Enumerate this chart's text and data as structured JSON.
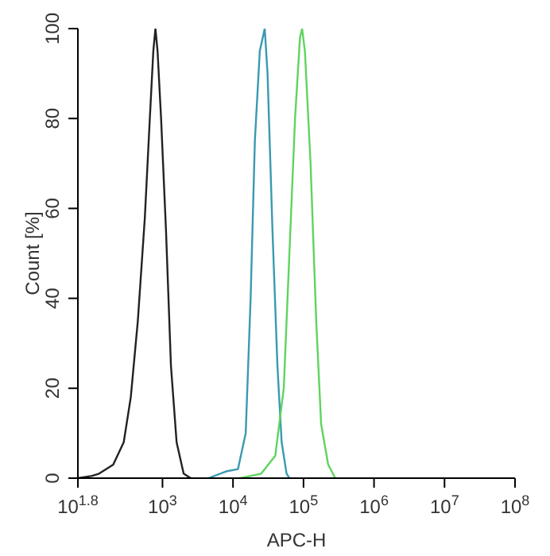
{
  "chart_data": {
    "type": "line",
    "xlabel": "APC-H",
    "ylabel": "Count [%]",
    "log": "x",
    "xlim": [
      63.1,
      100000000
    ],
    "xticks": [
      {
        "value": 63.1,
        "label": "10$^{1.8}$"
      },
      {
        "value": 1000,
        "label": "10$^{3}$"
      },
      {
        "value": 10000,
        "label": "10$^{4}$"
      },
      {
        "value": 100000,
        "label": "10$^{5}$"
      },
      {
        "value": 1000000,
        "label": "10$^{6}$"
      },
      {
        "value": 10000000,
        "label": "10$^{7}$"
      },
      {
        "value": 100000000,
        "label": "10$^{8}$"
      }
    ],
    "ylim": [
      0,
      100
    ],
    "yticks": [
      0,
      20,
      40,
      60,
      80,
      100
    ],
    "grid": false,
    "legend": false,
    "marker": "none",
    "series": [
      {
        "color": "#222222",
        "x": [
          63.1,
          100,
          126,
          200,
          282,
          355,
          447,
          562,
          661,
          741,
          794,
          851,
          955,
          1122,
          1318,
          1585,
          1995,
          2512
        ],
        "values": [
          0,
          0.5,
          1,
          3,
          8,
          18,
          35,
          58,
          80,
          95,
          100,
          95,
          80,
          55,
          25,
          8,
          1,
          0
        ]
      },
      {
        "color": "#3a9ab0",
        "x": [
          4467,
          7943,
          11750,
          15140,
          17780,
          20420,
          23990,
          28180,
          30900,
          36310,
          42660,
          48980,
          57540,
          63100
        ],
        "values": [
          0,
          1.5,
          2,
          10,
          40,
          75,
          95,
          100,
          90,
          55,
          25,
          8,
          1,
          0
        ]
      },
      {
        "color": "#5fd45f",
        "x": [
          12590,
          25120,
          39810,
          52480,
          63100,
          75860,
          89130,
          95500,
          104700,
          125900,
          151400,
          177800,
          223900,
          281800
        ],
        "values": [
          0,
          1,
          5,
          20,
          50,
          80,
          98,
          100,
          95,
          70,
          35,
          12,
          3,
          0
        ]
      }
    ]
  }
}
